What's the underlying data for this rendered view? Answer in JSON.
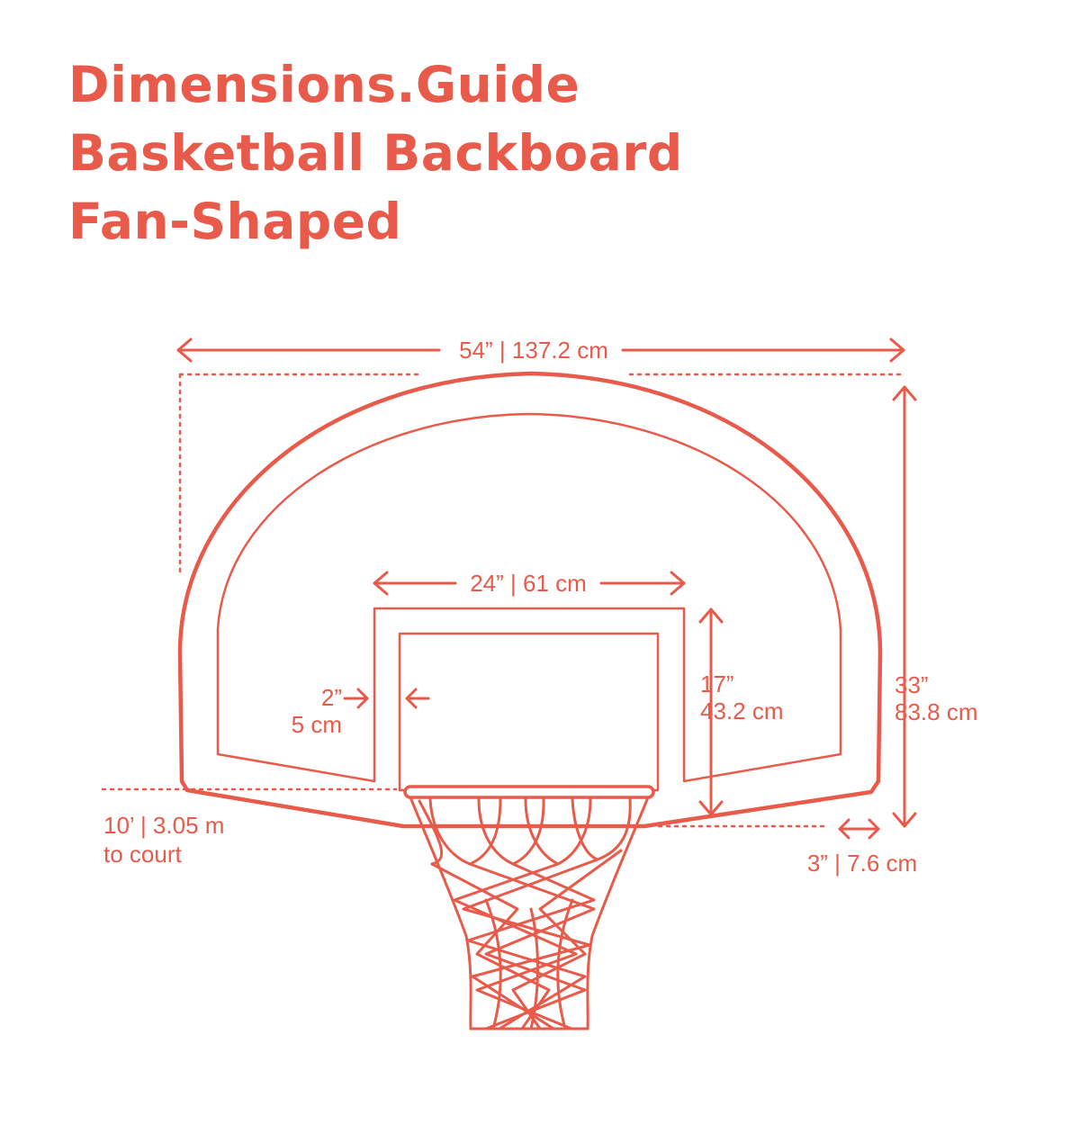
{
  "colors": {
    "accent": "#e85a4a",
    "background": "#ffffff"
  },
  "title": {
    "line1": "Dimensions.Guide",
    "line2": "Basketball Backboard",
    "line3": "Fan-Shaped"
  },
  "dimensions": {
    "overall_width": "54” | 137.2 cm",
    "overall_height_in": "33”",
    "overall_height_cm": "83.8 cm",
    "target_width": "24” | 61 cm",
    "target_height_in": "17”",
    "target_height_cm": "43.2 cm",
    "border_in": "2”",
    "border_cm": "5 cm",
    "rim_height_line1": "10’ | 3.05 m",
    "rim_height_line2": "to court",
    "thickness": "3” | 7.6 cm"
  },
  "icons": {
    "backboard": "backboard-outline",
    "hoop": "basketball-rim-and-net"
  }
}
